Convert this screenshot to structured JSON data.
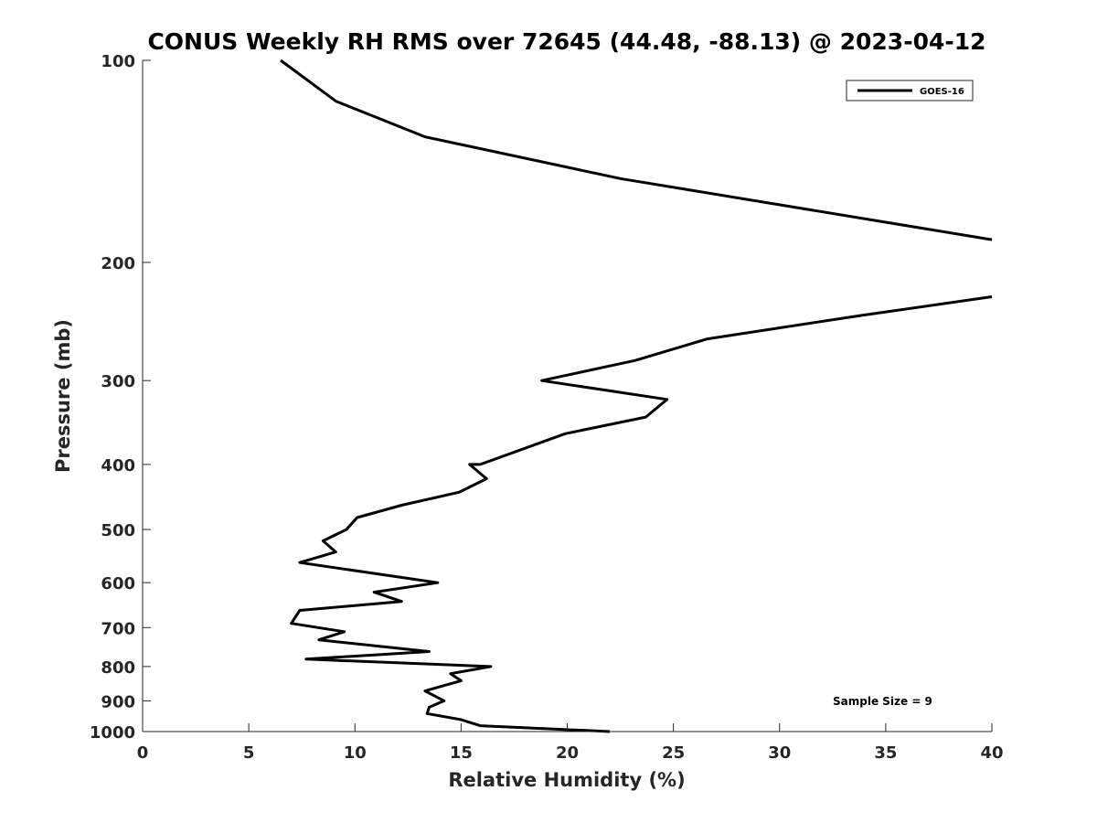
{
  "chart_data": {
    "type": "line",
    "title": "CONUS Weekly RH RMS over 72645 (44.48, -88.13) @ 2023-04-12",
    "xlabel": "Relative Humidity (%)",
    "ylabel": "Pressure (mb)",
    "xlim": [
      0,
      40
    ],
    "ylim": [
      100,
      1000
    ],
    "yscale": "log",
    "y_reversed": true,
    "xticks": [
      0,
      5,
      10,
      15,
      20,
      25,
      30,
      35,
      40
    ],
    "yticks": [
      100,
      200,
      300,
      400,
      500,
      600,
      700,
      800,
      900,
      1000
    ],
    "grid": false,
    "legend_position": "top-right",
    "annotation": "Sample Size = 9",
    "series": [
      {
        "name": "GOES-16",
        "color": "#000000",
        "x": [
          6.5,
          9.1,
          13.3,
          22.5,
          40.0,
          null,
          40.0,
          33.8,
          26.6,
          23.2,
          18.8,
          24.7,
          23.7,
          19.9,
          15.9,
          15.4,
          16.2,
          14.9,
          12.2,
          10.1,
          9.6,
          8.5,
          9.1,
          7.4,
          13.9,
          10.9,
          12.2,
          7.4,
          7.0,
          9.5,
          8.3,
          13.5,
          7.7,
          16.4,
          14.5,
          15.0,
          13.3,
          14.2,
          13.5,
          13.4,
          15.0,
          15.9,
          22.0
        ],
        "y": [
          100,
          115,
          130,
          150,
          185,
          null,
          225,
          240,
          260,
          280,
          300,
          320,
          340,
          360,
          400,
          400,
          420,
          440,
          460,
          480,
          500,
          520,
          540,
          560,
          600,
          620,
          640,
          660,
          690,
          710,
          730,
          760,
          780,
          800,
          820,
          840,
          870,
          900,
          920,
          940,
          960,
          980,
          1000
        ]
      }
    ]
  }
}
